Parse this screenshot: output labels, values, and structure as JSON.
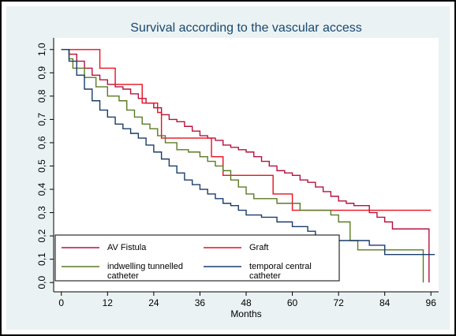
{
  "chart_data": {
    "type": "line",
    "step": true,
    "title": "Survival according to the vascular access",
    "x_label": "Months",
    "xlim": [
      -2,
      98
    ],
    "xticks": [
      0,
      12,
      24,
      36,
      48,
      60,
      72,
      84,
      96
    ],
    "ylim": [
      -0.04,
      1.05
    ],
    "yticks": [
      {
        "value": 0,
        "label": "0,0"
      },
      {
        "value": 0.1,
        "label": "0,1"
      },
      {
        "value": 0.2,
        "label": "0,2"
      },
      {
        "value": 0.3,
        "label": "0,3"
      },
      {
        "value": 0.4,
        "label": "0,4"
      },
      {
        "value": 0.5,
        "label": "0,5"
      },
      {
        "value": 0.6,
        "label": "0,6"
      },
      {
        "value": 0.7,
        "label": "0,7"
      },
      {
        "value": 0.8,
        "label": "0,8"
      },
      {
        "value": 0.9,
        "label": "0,9"
      },
      {
        "value": 1,
        "label": "1,0"
      }
    ],
    "legend": "bottom-left",
    "series": [
      {
        "name": "AV Fistula",
        "color": "#b5123e",
        "x": [
          0,
          2,
          4,
          6,
          8,
          10,
          12,
          14,
          16,
          18,
          20,
          22,
          24,
          26,
          28,
          30,
          32,
          34,
          36,
          38,
          40,
          42,
          44,
          46,
          48,
          50,
          52,
          54,
          56,
          58,
          60,
          62,
          64,
          66,
          68,
          70,
          72,
          74,
          76,
          80,
          82,
          84,
          86,
          95.5
        ],
        "values": [
          1,
          0.98,
          0.95,
          0.92,
          0.89,
          0.87,
          0.85,
          0.84,
          0.83,
          0.81,
          0.79,
          0.77,
          0.75,
          0.72,
          0.7,
          0.69,
          0.67,
          0.65,
          0.63,
          0.62,
          0.61,
          0.59,
          0.58,
          0.57,
          0.56,
          0.54,
          0.52,
          0.5,
          0.48,
          0.47,
          0.46,
          0.44,
          0.43,
          0.41,
          0.39,
          0.37,
          0.35,
          0.34,
          0.33,
          0.3,
          0.28,
          0.26,
          0.23,
          0
        ]
      },
      {
        "name": "Graft",
        "color": "#e8101f",
        "x": [
          0,
          10,
          14,
          21,
          25,
          26,
          39,
          42,
          55,
          60,
          96
        ],
        "values": [
          1,
          0.92,
          0.85,
          0.77,
          0.73,
          0.62,
          0.54,
          0.46,
          0.38,
          0.31,
          0.31
        ]
      },
      {
        "name": "indwelling tunnelled catheter",
        "color": "#5b7a22",
        "x": [
          0,
          2,
          3,
          6,
          9,
          12,
          15,
          17,
          19,
          21,
          23,
          25,
          27,
          30,
          33,
          36,
          38,
          40,
          42,
          44,
          46,
          48,
          50,
          56,
          62,
          70,
          72,
          75,
          77,
          94
        ],
        "values": [
          1,
          0.96,
          0.92,
          0.88,
          0.84,
          0.8,
          0.78,
          0.74,
          0.71,
          0.68,
          0.66,
          0.63,
          0.6,
          0.57,
          0.56,
          0.54,
          0.52,
          0.5,
          0.48,
          0.44,
          0.41,
          0.38,
          0.36,
          0.34,
          0.31,
          0.29,
          0.26,
          0.18,
          0.14,
          0
        ]
      },
      {
        "name": "temporal central catheter",
        "color": "#1a3c6a",
        "x": [
          0,
          2,
          4,
          6,
          8,
          10,
          12,
          14,
          16,
          18,
          20,
          22,
          24,
          26,
          28,
          30,
          32,
          34,
          36,
          38,
          40,
          42,
          44,
          46,
          48,
          52,
          56,
          60,
          64,
          66,
          70,
          80,
          84,
          97
        ],
        "values": [
          1,
          0.95,
          0.89,
          0.83,
          0.78,
          0.74,
          0.71,
          0.68,
          0.66,
          0.64,
          0.62,
          0.59,
          0.56,
          0.53,
          0.5,
          0.47,
          0.44,
          0.42,
          0.4,
          0.38,
          0.36,
          0.34,
          0.33,
          0.31,
          0.29,
          0.28,
          0.26,
          0.24,
          0.22,
          0.2,
          0.18,
          0.16,
          0.12,
          0.12
        ]
      }
    ]
  }
}
